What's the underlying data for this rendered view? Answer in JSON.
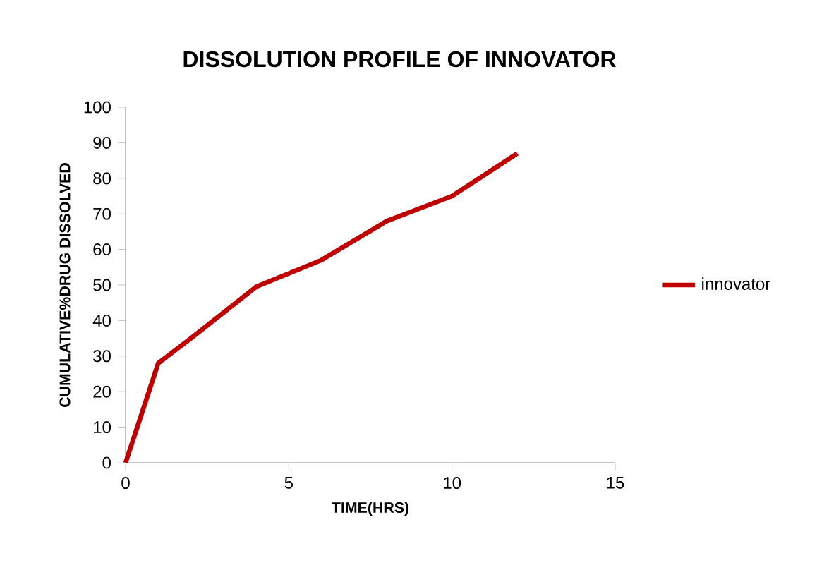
{
  "chart_data": {
    "type": "line",
    "title": "DISSOLUTION PROFILE OF INNOVATOR",
    "xlabel": "TIME(HRS)",
    "ylabel": "CUMULATIVE%DRUG DISSOLVED",
    "x": [
      0,
      1,
      2,
      4,
      6,
      8,
      10,
      12
    ],
    "series": [
      {
        "name": "innovator",
        "color": "#c00000",
        "values": [
          0,
          28,
          35,
          49.5,
          57,
          68,
          75,
          87
        ]
      }
    ],
    "xlim": [
      0,
      15
    ],
    "xticks": [
      0,
      5,
      10,
      15
    ],
    "ylim": [
      0,
      100
    ],
    "yticks": [
      0,
      10,
      20,
      30,
      40,
      50,
      60,
      70,
      80,
      90,
      100
    ],
    "grid": false,
    "legend": "right",
    "marker": "none",
    "line_style": "solid"
  }
}
